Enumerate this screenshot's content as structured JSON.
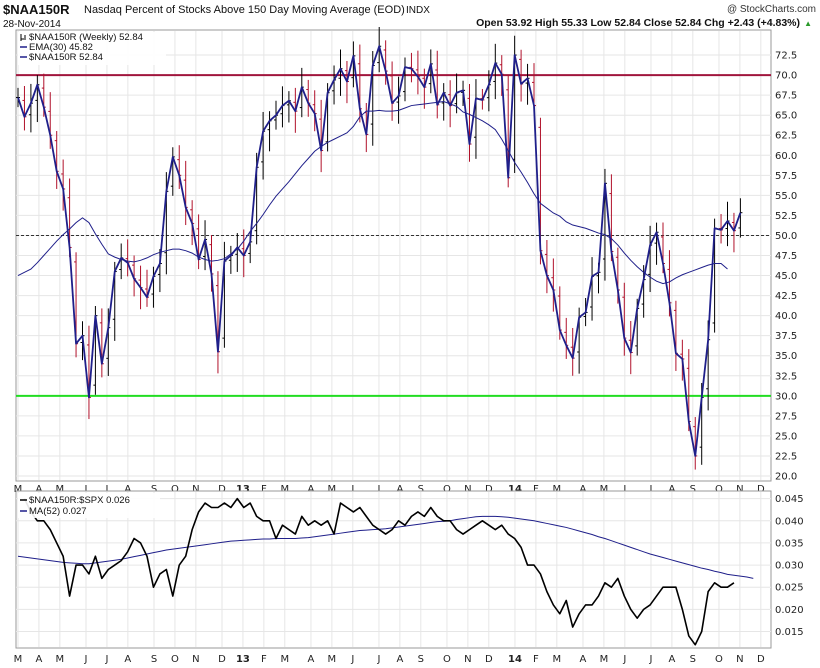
{
  "header": {
    "symbol": "$NAA150R",
    "description": "Nasdaq Percent of Stocks Above 150 Day Moving Average (EOD)",
    "exchange": "INDX",
    "copyright": "@ StockCharts.com",
    "date": "28-Nov-2014",
    "ohlc": "Open 53.92  High 55.33  Low 52.84  Close 52.84  Chg +2.43 (+4.83%)",
    "ohlc_arrow": "▲"
  },
  "colors": {
    "price_line": "#1f1f8a",
    "ema_line": "#1f1f8a",
    "up_bar": "#000000",
    "down_bar": "#b0102a",
    "upper_line": "#a0143c",
    "lower_line": "#22dd22",
    "grid": "#e6e6e6",
    "ratio_line": "#000000",
    "ma_line": "#1f1f8a"
  },
  "chart_data": [
    {
      "type": "line",
      "panel": "main",
      "legend": [
        {
          "name": "$NAA150R (Weekly) 52.84",
          "marker": "bars"
        },
        {
          "name": "EMA(30) 45.82",
          "marker": "line"
        },
        {
          "name": "$NAA150R 52.84",
          "marker": "line"
        }
      ],
      "x_labels": [
        "M",
        "A",
        "M",
        "J",
        "J",
        "A",
        "S",
        "O",
        "N",
        "D",
        "13",
        "F",
        "M",
        "A",
        "M",
        "J",
        "J",
        "A",
        "S",
        "O",
        "N",
        "D",
        "14",
        "F",
        "M",
        "A",
        "M",
        "J",
        "J",
        "A",
        "S",
        "O",
        "N",
        "D"
      ],
      "ylim": [
        19.5,
        75.5
      ],
      "yticks": [
        "20.0",
        "22.5",
        "25.0",
        "27.5",
        "30.0",
        "32.5",
        "35.0",
        "37.5",
        "40.0",
        "42.5",
        "45.0",
        "47.5",
        "50.0",
        "52.5",
        "55.0",
        "57.5",
        "60.0",
        "62.5",
        "65.0",
        "67.5",
        "70.0",
        "72.5"
      ],
      "reference_lines": [
        {
          "value": 70,
          "style": "solid",
          "color": "upper_line"
        },
        {
          "value": 30,
          "style": "solid",
          "color": "lower_line"
        },
        {
          "value": 50,
          "style": "dashed",
          "color": "#333333"
        }
      ],
      "x_start": 0,
      "series": [
        {
          "name": "$NAA150R",
          "values": [
            67.2,
            64.8,
            66.5,
            68.8,
            66,
            62.5,
            58,
            55.8,
            48.5,
            36.5,
            37.5,
            29.8,
            40,
            34,
            38.5,
            45.5,
            47.2,
            46.6,
            44.6,
            43.5,
            42.3,
            44.9,
            46.5,
            55.5,
            59.8,
            57.5,
            53.5,
            51.5,
            47,
            49.5,
            45.2,
            35.5,
            46.8,
            47.5,
            48.5,
            47.5,
            49.2,
            58.5,
            63,
            64.3,
            65,
            66.2,
            66.8,
            65.5,
            68.5,
            66.5,
            65.2,
            60.6,
            67.8,
            69.4,
            70.8,
            69.2,
            72.4,
            65.8,
            62.6,
            71.2,
            73.6,
            70.5,
            66.5,
            67.4,
            71,
            70.8,
            69.8,
            68.5,
            71.4,
            66.3,
            67.8,
            66.2,
            67.8,
            68.1,
            61.4,
            67.1,
            66.9,
            68.8,
            71.5,
            70.1,
            57.2,
            72.5,
            68.9,
            69.6,
            66.2,
            48.1,
            45,
            43.2,
            38.2,
            36.3,
            34.7,
            39.8,
            40.4,
            44.9,
            45.4,
            56.5,
            48,
            43.2,
            37.2,
            35.4,
            40.9,
            44.5,
            48.8,
            50.4,
            46.5,
            41.6,
            35.3,
            34.6,
            26.8,
            22.5,
            29.8,
            37,
            50.9,
            50.7,
            51.8,
            50.6,
            52.84
          ]
        },
        {
          "name": "EMA(30)",
          "values": [
            45,
            45.4,
            45.8,
            46.6,
            47.5,
            48.4,
            49.3,
            50.1,
            50.8,
            51.6,
            52.2,
            51.6,
            50.2,
            48.9,
            47.7,
            47.3,
            47,
            46.8,
            46.7,
            46.9,
            47.2,
            47.6,
            47.9,
            48.1,
            48.3,
            48.3,
            48.1,
            47.8,
            47.3,
            47,
            46.8,
            46.9,
            47.1,
            47.7,
            48.3,
            49.3,
            50.5,
            51.5,
            52.6,
            53.8,
            54.9,
            55.8,
            56.7,
            57.7,
            58.7,
            59.6,
            60.5,
            61.1,
            61.6,
            62,
            62.4,
            62.8,
            63.6,
            64.8,
            65.5,
            65.5,
            65.6,
            65.5,
            65.5,
            65.6,
            65.9,
            66.2,
            66.3,
            66.4,
            66.5,
            66.6,
            66.7,
            66.4,
            66.1,
            65.4,
            65.1,
            64.7,
            64.3,
            63.8,
            63.2,
            62,
            60.6,
            59.1,
            57.9,
            56.6,
            55.2,
            54,
            53.4,
            52.8,
            52.4,
            51.7,
            51.3,
            51.1,
            50.9,
            50.6,
            50.3,
            50.1,
            49.6,
            48.8,
            47.8,
            46.9,
            46.1,
            45.4,
            44.8,
            44.3,
            44,
            44.2,
            44.7,
            45.1,
            45.4,
            45.7,
            46,
            46.3,
            46.5,
            46.5,
            45.82
          ]
        }
      ]
    },
    {
      "type": "line",
      "panel": "ratio",
      "legend": [
        {
          "name": "$NAA150R:$SPX 0.026",
          "marker": "line"
        },
        {
          "name": "MA(52) 0.027",
          "marker": "line"
        }
      ],
      "ylim": [
        0.0115,
        0.0465
      ],
      "yticks": [
        "0.015",
        "0.020",
        "0.025",
        "0.030",
        "0.035",
        "0.040",
        "0.045"
      ],
      "x_start": 1,
      "series": [
        {
          "name": "$NAA150R:$SPX",
          "values": [
            0.045,
            0.042,
            0.04,
            0.04,
            0.038,
            0.035,
            0.032,
            0.023,
            0.03,
            0.03,
            0.028,
            0.032,
            0.027,
            0.029,
            0.03,
            0.031,
            0.033,
            0.036,
            0.035,
            0.032,
            0.025,
            0.028,
            0.029,
            0.023,
            0.03,
            0.032,
            0.038,
            0.042,
            0.044,
            0.043,
            0.043,
            0.044,
            0.043,
            0.045,
            0.043,
            0.044,
            0.041,
            0.04,
            0.04,
            0.036,
            0.039,
            0.038,
            0.037,
            0.041,
            0.039,
            0.04,
            0.039,
            0.04,
            0.037,
            0.044,
            0.043,
            0.042,
            0.043,
            0.041,
            0.039,
            0.038,
            0.037,
            0.038,
            0.04,
            0.039,
            0.041,
            0.042,
            0.041,
            0.043,
            0.041,
            0.04,
            0.04,
            0.038,
            0.037,
            0.038,
            0.039,
            0.04,
            0.039,
            0.038,
            0.039,
            0.037,
            0.036,
            0.034,
            0.03,
            0.03,
            0.028,
            0.024,
            0.021,
            0.019,
            0.022,
            0.016,
            0.019,
            0.021,
            0.021,
            0.023,
            0.026,
            0.025,
            0.027,
            0.023,
            0.02,
            0.018,
            0.02,
            0.021,
            0.023,
            0.025,
            0.025,
            0.025,
            0.02,
            0.014,
            0.012,
            0.015,
            0.024,
            0.026,
            0.025,
            0.025,
            0.026
          ]
        },
        {
          "name": "MA(52)",
          "values": [
            0.032,
            0.0318,
            0.0316,
            0.0314,
            0.0312,
            0.031,
            0.0308,
            0.0306,
            0.0305,
            0.0304,
            0.0303,
            0.0303,
            0.0305,
            0.0307,
            0.0309,
            0.0311,
            0.0313,
            0.0316,
            0.0319,
            0.0322,
            0.0325,
            0.0328,
            0.0331,
            0.0334,
            0.0336,
            0.0338,
            0.034,
            0.0342,
            0.0344,
            0.0346,
            0.0348,
            0.035,
            0.0352,
            0.0354,
            0.0355,
            0.0356,
            0.0357,
            0.0358,
            0.0359,
            0.0359,
            0.036,
            0.036,
            0.036,
            0.036,
            0.0361,
            0.0362,
            0.0364,
            0.0366,
            0.0368,
            0.037,
            0.0372,
            0.0374,
            0.0376,
            0.0378,
            0.0379,
            0.038,
            0.0381,
            0.0382,
            0.0384,
            0.0386,
            0.0388,
            0.039,
            0.0392,
            0.0394,
            0.0396,
            0.0398,
            0.0399,
            0.04,
            0.0403,
            0.0405,
            0.0407,
            0.0409,
            0.041,
            0.041,
            0.041,
            0.0409,
            0.0408,
            0.0406,
            0.0404,
            0.0402,
            0.04,
            0.0397,
            0.0394,
            0.0391,
            0.0388,
            0.0385,
            0.0381,
            0.0377,
            0.0373,
            0.0369,
            0.0364,
            0.036,
            0.0355,
            0.035,
            0.0345,
            0.034,
            0.0335,
            0.033,
            0.0325,
            0.0321,
            0.0317,
            0.0313,
            0.0309,
            0.0305,
            0.0301,
            0.0297,
            0.0293,
            0.029,
            0.0286,
            0.0283,
            0.0279,
            0.0277,
            0.0275,
            0.0273,
            0.027
          ]
        }
      ]
    }
  ]
}
